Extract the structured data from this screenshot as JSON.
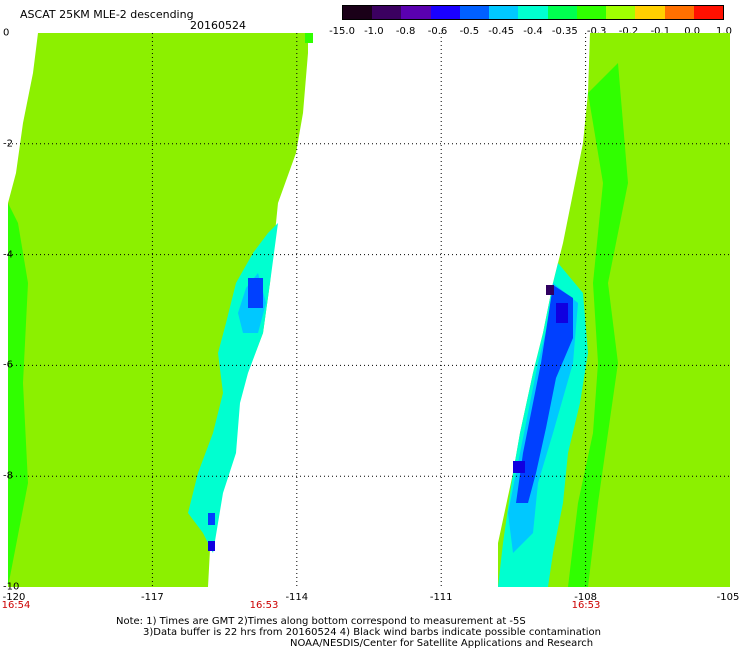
{
  "header": {
    "title": "ASCAT 25KM MLE-2 descending",
    "date": "20160524"
  },
  "colorbar": {
    "labels": [
      "-15.0",
      "-1.0",
      "-0.8",
      "-0.6",
      "-0.5",
      "-0.45",
      "-0.4",
      "-0.35",
      "-0.3",
      "-0.2",
      "-0.1",
      "0.0",
      "1.0"
    ],
    "colors": [
      "#1a0018",
      "#3b0060",
      "#5a00b0",
      "#1a00ff",
      "#0060ff",
      "#00c8ff",
      "#00ffd0",
      "#00ff50",
      "#30ff00",
      "#a0ff00",
      "#ffd000",
      "#ff7000",
      "#ff1000"
    ]
  },
  "map": {
    "lat_ticks": [
      "0",
      "-2",
      "-4",
      "-6",
      "-8",
      "-10"
    ],
    "lon_ticks": [
      "-120",
      "-117",
      "-114",
      "-111",
      "-108",
      "-105"
    ],
    "times": [
      "16:54",
      "16:53",
      "16:53"
    ],
    "colors": {
      "base": "#8cf000",
      "green": "#30ff00",
      "cyan": "#00ffd0",
      "lightblue": "#00c8ff",
      "blue": "#0040ff",
      "darkblue": "#1000e0",
      "purple": "#300060"
    }
  },
  "notes": {
    "line1": "Note: 1) Times are GMT 2)Times along bottom correspond to measurement at -5S",
    "line2": "3)Data buffer is 22 hrs from 20160524 4) Black wind barbs indicate possible contamination",
    "line3": "NOAA/NESDIS/Center for Satellite Applications and Research"
  }
}
